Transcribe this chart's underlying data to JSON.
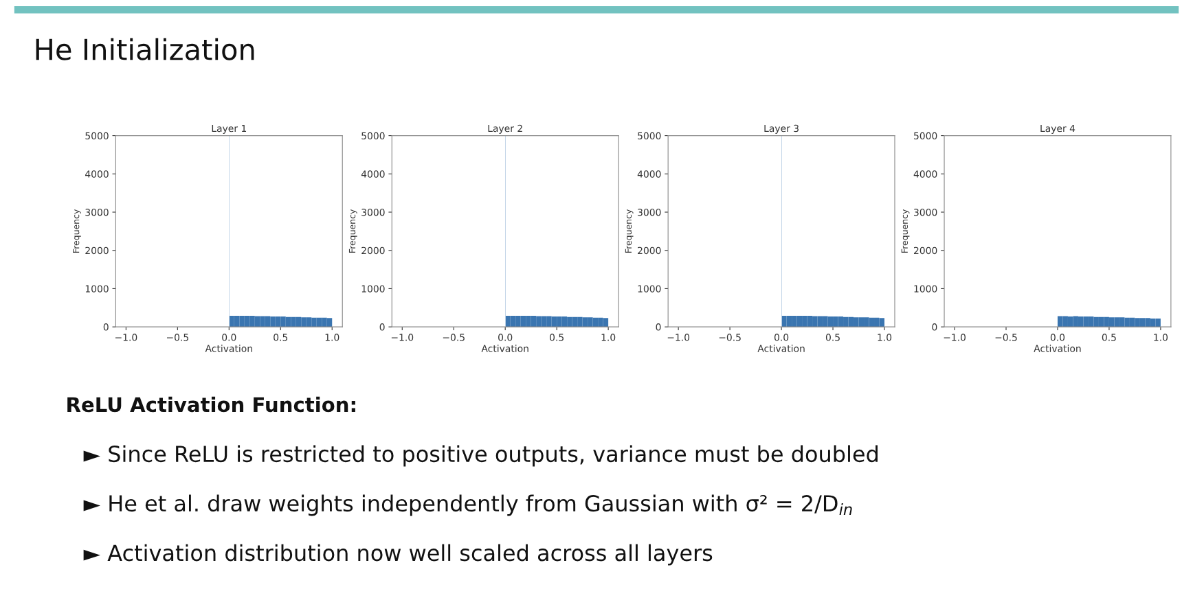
{
  "chart_data": [
    {
      "type": "histogram",
      "title": "Layer 1",
      "xlabel": "Activation",
      "ylabel": "Frequency",
      "bins": [
        0,
        0.005,
        0.05,
        0.1,
        0.15,
        0.2,
        0.25,
        0.3,
        0.35,
        0.4,
        0.45,
        0.5,
        0.55,
        0.6,
        0.65,
        0.7,
        0.75,
        0.8,
        0.85,
        0.9,
        0.95,
        1.0
      ],
      "values": [
        5000,
        290,
        290,
        290,
        290,
        290,
        280,
        280,
        280,
        270,
        270,
        270,
        260,
        260,
        260,
        250,
        250,
        240,
        240,
        240,
        230
      ],
      "colors": [
        "#b0c8e0",
        "#3a75b0",
        "#3a75b0",
        "#3a75b0",
        "#3a75b0",
        "#3a75b0",
        "#3a75b0",
        "#3a75b0",
        "#3a75b0",
        "#3a75b0",
        "#3a75b0",
        "#3a75b0",
        "#3a75b0",
        "#3a75b0",
        "#3a75b0",
        "#3a75b0",
        "#3a75b0",
        "#3a75b0",
        "#3a75b0",
        "#3a75b0",
        "#3a75b0"
      ],
      "xlim": [
        -1.1,
        1.1
      ],
      "ylim": [
        0,
        5000
      ],
      "xticks": [
        {
          "value": -1,
          "label": "−1.0"
        },
        {
          "value": -0.5,
          "label": "−0.5"
        },
        {
          "value": 0,
          "label": "0.0"
        },
        {
          "value": 0.5,
          "label": "0.5"
        },
        {
          "value": 1,
          "label": "1.0"
        }
      ],
      "yticks": [
        0,
        1000,
        2000,
        3000,
        4000,
        5000
      ],
      "annotations": [
        "He Initialization",
        "ReLU Activation Function:",
        "► Since ReLU is restricted to positive outputs, variance must be doubled",
        "► He et al. draw weights independently from Gaussian with σ² = 2/D$_{in}$",
        "► Activation distribution now well scaled across all layers"
      ]
    },
    {
      "type": "histogram",
      "title": "Layer 2",
      "xlabel": "Activation",
      "ylabel": "Frequency",
      "bins": [
        0,
        0.005,
        0.05,
        0.1,
        0.15,
        0.2,
        0.25,
        0.3,
        0.35,
        0.4,
        0.45,
        0.5,
        0.55,
        0.6,
        0.65,
        0.7,
        0.75,
        0.8,
        0.85,
        0.9,
        0.95,
        1.0
      ],
      "values": [
        5000,
        290,
        290,
        290,
        290,
        290,
        290,
        280,
        280,
        280,
        270,
        270,
        270,
        260,
        260,
        260,
        250,
        250,
        240,
        240,
        230
      ],
      "colors": [
        "#b0c8e0",
        "#3a75b0",
        "#3a75b0",
        "#3a75b0",
        "#3a75b0",
        "#3a75b0",
        "#3a75b0",
        "#3a75b0",
        "#3a75b0",
        "#3a75b0",
        "#3a75b0",
        "#3a75b0",
        "#3a75b0",
        "#3a75b0",
        "#3a75b0",
        "#3a75b0",
        "#3a75b0",
        "#3a75b0",
        "#3a75b0",
        "#3a75b0",
        "#3a75b0"
      ],
      "xlim": [
        -1.1,
        1.1
      ],
      "ylim": [
        0,
        5000
      ],
      "xticks": [
        {
          "value": -1,
          "label": "−1.0"
        },
        {
          "value": -0.5,
          "label": "−0.5"
        },
        {
          "value": 0,
          "label": "0.0"
        },
        {
          "value": 0.5,
          "label": "0.5"
        },
        {
          "value": 1,
          "label": "1.0"
        }
      ],
      "yticks": [
        0,
        1000,
        2000,
        3000,
        4000,
        5000
      ]
    },
    {
      "type": "histogram",
      "title": "Layer 3",
      "xlabel": "Activation",
      "ylabel": "Frequency",
      "bins": [
        0,
        0.005,
        0.05,
        0.1,
        0.15,
        0.2,
        0.25,
        0.3,
        0.35,
        0.4,
        0.45,
        0.5,
        0.55,
        0.6,
        0.65,
        0.7,
        0.75,
        0.8,
        0.85,
        0.9,
        0.95,
        1.0
      ],
      "values": [
        5000,
        290,
        290,
        290,
        290,
        290,
        290,
        280,
        280,
        280,
        270,
        270,
        270,
        260,
        260,
        250,
        250,
        250,
        240,
        240,
        230
      ],
      "colors": [
        "#b0c8e0",
        "#3a75b0",
        "#3a75b0",
        "#3a75b0",
        "#3a75b0",
        "#3a75b0",
        "#3a75b0",
        "#3a75b0",
        "#3a75b0",
        "#3a75b0",
        "#3a75b0",
        "#3a75b0",
        "#3a75b0",
        "#3a75b0",
        "#3a75b0",
        "#3a75b0",
        "#3a75b0",
        "#3a75b0",
        "#3a75b0",
        "#3a75b0",
        "#3a75b0"
      ],
      "xlim": [
        -1.1,
        1.1
      ],
      "ylim": [
        0,
        5000
      ],
      "xticks": [
        {
          "value": -1,
          "label": "−1.0"
        },
        {
          "value": -0.5,
          "label": "−0.5"
        },
        {
          "value": 0,
          "label": "0.0"
        },
        {
          "value": 0.5,
          "label": "0.5"
        },
        {
          "value": 1,
          "label": "1.0"
        }
      ],
      "yticks": [
        0,
        1000,
        2000,
        3000,
        4000,
        5000
      ]
    },
    {
      "type": "histogram",
      "title": "Layer 4",
      "xlabel": "Activation",
      "ylabel": "Frequency",
      "bins": [
        0,
        0.05,
        0.1,
        0.15,
        0.2,
        0.25,
        0.3,
        0.35,
        0.4,
        0.45,
        0.5,
        0.55,
        0.6,
        0.65,
        0.7,
        0.75,
        0.8,
        0.85,
        0.9,
        0.95,
        1.0
      ],
      "values": [
        280,
        280,
        270,
        280,
        270,
        270,
        270,
        260,
        260,
        260,
        250,
        250,
        250,
        240,
        240,
        230,
        230,
        230,
        220,
        220
      ],
      "colors": [
        "#3a75b0",
        "#3a75b0",
        "#3a75b0",
        "#3a75b0",
        "#3a75b0",
        "#3a75b0",
        "#3a75b0",
        "#3a75b0",
        "#3a75b0",
        "#3a75b0",
        "#3a75b0",
        "#3a75b0",
        "#3a75b0",
        "#3a75b0",
        "#3a75b0",
        "#3a75b0",
        "#3a75b0",
        "#3a75b0",
        "#3a75b0",
        "#3a75b0"
      ],
      "xlim": [
        -1.1,
        1.1
      ],
      "ylim": [
        0,
        5000
      ],
      "xticks": [
        {
          "value": -1,
          "label": "−1.0"
        },
        {
          "value": -0.5,
          "label": "−0.5"
        },
        {
          "value": 0,
          "label": "0.0"
        },
        {
          "value": 0.5,
          "label": "0.5"
        },
        {
          "value": 1,
          "label": "1.0"
        }
      ],
      "yticks": [
        0,
        1000,
        2000,
        3000,
        4000,
        5000
      ]
    }
  ]
}
